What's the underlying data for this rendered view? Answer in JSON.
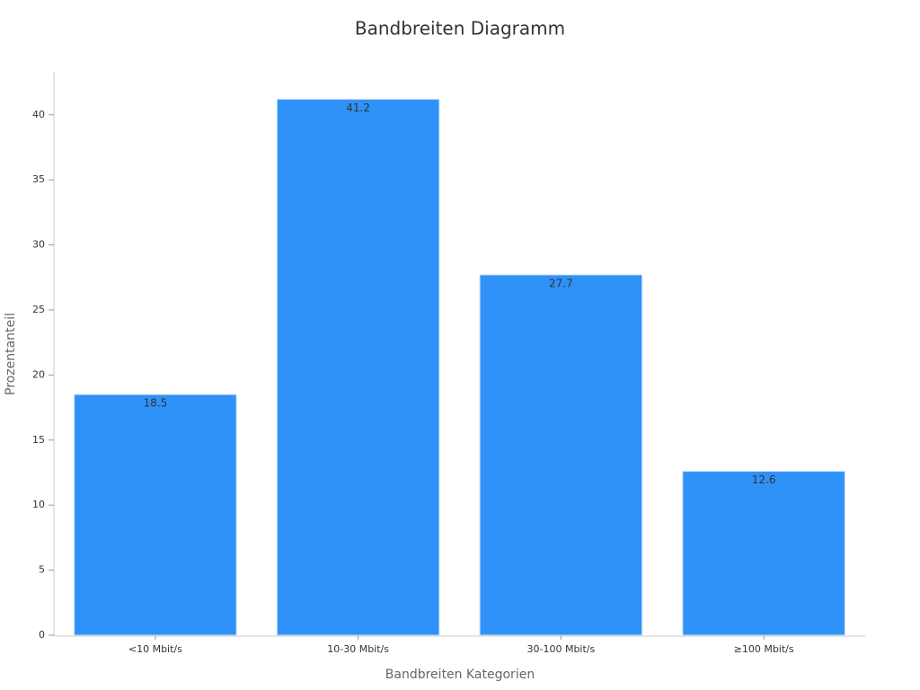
{
  "chart_data": {
    "type": "bar",
    "title": "Bandbreiten Diagramm",
    "x_label": "Bandbreiten Kategorien",
    "y_label": "Prozentanteil",
    "categories": [
      "<10 Mbit/s",
      "10-30 Mbit/s",
      "30-100 Mbit/s",
      "≥100 Mbit/s"
    ],
    "values": [
      18.5,
      41.2,
      27.7,
      12.6
    ],
    "color": "#2f92f8",
    "ylim": [
      0,
      43.3
    ],
    "yticks": [
      0,
      5,
      10,
      15,
      20,
      25,
      30,
      35,
      40
    ],
    "grid": false
  }
}
